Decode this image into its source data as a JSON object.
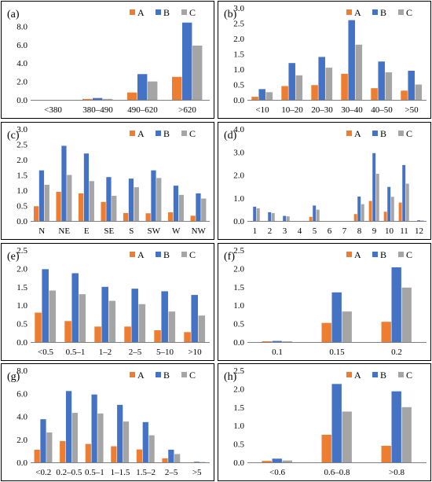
{
  "colors": {
    "A": "#ED7D31",
    "B": "#4472C4",
    "C": "#A5A5A5",
    "axis": "#7f7f7f",
    "frame": "#000000"
  },
  "legend": [
    "A",
    "B",
    "C"
  ],
  "chart_data": [
    {
      "type": "bar",
      "panel_label": "(a)",
      "categories": [
        "<380",
        "380–490",
        "490–620",
        ">620"
      ],
      "ylim": [
        0,
        10
      ],
      "yticks": [
        "0.0",
        "2.0",
        "4.0",
        "6.0",
        "8.0"
      ],
      "ytick_values": [
        0,
        2,
        4,
        6,
        8
      ],
      "series": [
        {
          "name": "A",
          "values": [
            0.0,
            0.1,
            0.8,
            2.5
          ]
        },
        {
          "name": "B",
          "values": [
            0.0,
            0.2,
            2.8,
            8.4
          ]
        },
        {
          "name": "C",
          "values": [
            0.0,
            0.1,
            2.0,
            5.9
          ]
        }
      ]
    },
    {
      "type": "bar",
      "panel_label": "(b)",
      "categories": [
        "<10",
        "10–20",
        "20–30",
        "30–40",
        "40–50",
        ">50"
      ],
      "ylim": [
        0,
        3.0
      ],
      "yticks": [
        "0.0",
        "0.5",
        "1.0",
        "1.5",
        "2.0",
        "2.5",
        "3.0"
      ],
      "ytick_values": [
        0,
        0.5,
        1.0,
        1.5,
        2.0,
        2.5,
        3.0
      ],
      "series": [
        {
          "name": "A",
          "values": [
            0.1,
            0.45,
            0.48,
            0.85,
            0.38,
            0.3
          ]
        },
        {
          "name": "B",
          "values": [
            0.35,
            1.2,
            1.4,
            2.6,
            1.25,
            0.95
          ]
        },
        {
          "name": "C",
          "values": [
            0.25,
            0.8,
            1.05,
            1.8,
            0.9,
            0.5
          ]
        }
      ]
    },
    {
      "type": "bar",
      "panel_label": "(c)",
      "categories": [
        "N",
        "NE",
        "E",
        "SE",
        "S",
        "SW",
        "W",
        "NW"
      ],
      "ylim": [
        0,
        3.0
      ],
      "yticks": [
        "0.0",
        "0.5",
        "1.0",
        "1.5",
        "2.0",
        "2.5",
        "3.0"
      ],
      "ytick_values": [
        0,
        0.5,
        1.0,
        1.5,
        2.0,
        2.5,
        3.0
      ],
      "series": [
        {
          "name": "A",
          "values": [
            0.48,
            0.95,
            0.9,
            0.62,
            0.26,
            0.25,
            0.28,
            0.17
          ]
        },
        {
          "name": "B",
          "values": [
            1.65,
            2.45,
            2.2,
            1.43,
            1.38,
            1.65,
            1.15,
            0.9
          ]
        },
        {
          "name": "C",
          "values": [
            1.18,
            1.5,
            1.3,
            0.82,
            1.1,
            1.4,
            0.85,
            0.73
          ]
        }
      ]
    },
    {
      "type": "bar",
      "panel_label": "(d)",
      "categories": [
        "1",
        "2",
        "3",
        "4",
        "5",
        "6",
        "7",
        "8",
        "9",
        "10",
        "11",
        "12"
      ],
      "ylim": [
        0,
        4.0
      ],
      "yticks": [
        "0.0",
        "1.0",
        "2.0",
        "3.0",
        "4.0"
      ],
      "ytick_values": [
        0,
        1,
        2,
        3,
        4
      ],
      "series": [
        {
          "name": "A",
          "values": [
            0.0,
            0.0,
            0.0,
            0.0,
            0.18,
            0.0,
            0.0,
            0.3,
            0.87,
            0.4,
            0.8,
            0.0
          ]
        },
        {
          "name": "B",
          "values": [
            0.62,
            0.38,
            0.22,
            0.0,
            0.67,
            0.0,
            0.0,
            1.06,
            2.95,
            1.48,
            2.43,
            0.03
          ]
        },
        {
          "name": "C",
          "values": [
            0.55,
            0.34,
            0.2,
            0.0,
            0.49,
            0.0,
            0.0,
            0.73,
            2.05,
            1.05,
            1.62,
            0.02
          ]
        }
      ]
    },
    {
      "type": "bar",
      "panel_label": "(e)",
      "categories": [
        "<0.5",
        "0.5–1",
        "1–2",
        "2–5",
        "5–10",
        ">10"
      ],
      "ylim": [
        0,
        2.5
      ],
      "yticks": [
        "0.0",
        "0.5",
        "1.0",
        "1.5",
        "2.0",
        "2.5"
      ],
      "ytick_values": [
        0,
        0.5,
        1.0,
        1.5,
        2.0,
        2.5
      ],
      "series": [
        {
          "name": "A",
          "values": [
            0.8,
            0.57,
            0.42,
            0.42,
            0.32,
            0.27
          ]
        },
        {
          "name": "B",
          "values": [
            1.98,
            1.87,
            1.5,
            1.45,
            1.38,
            1.28
          ]
        },
        {
          "name": "C",
          "values": [
            1.4,
            1.3,
            1.12,
            1.03,
            0.83,
            0.72
          ]
        }
      ]
    },
    {
      "type": "bar",
      "panel_label": "(f)",
      "categories": [
        "0.1",
        "0.15",
        "0.2"
      ],
      "ylim": [
        0,
        2.5
      ],
      "yticks": [
        "0.0",
        "0.5",
        "1.0",
        "1.5",
        "2.0",
        "2.5"
      ],
      "ytick_values": [
        0,
        0.5,
        1.0,
        1.5,
        2.0,
        2.5
      ],
      "series": [
        {
          "name": "A",
          "values": [
            0.02,
            0.52,
            0.55
          ]
        },
        {
          "name": "B",
          "values": [
            0.03,
            1.35,
            2.03
          ]
        },
        {
          "name": "C",
          "values": [
            0.02,
            0.83,
            1.48
          ]
        }
      ]
    },
    {
      "type": "bar",
      "panel_label": "(g)",
      "categories": [
        "<0.2",
        "0.2–0.5",
        "0.5–1",
        "1–1.5",
        "1.5–2",
        "2–5",
        ">5"
      ],
      "ylim": [
        0,
        8.0
      ],
      "yticks": [
        "0.0",
        "2.0",
        "4.0",
        "6.0",
        "8.0"
      ],
      "ytick_values": [
        0,
        2,
        4,
        6,
        8
      ],
      "series": [
        {
          "name": "A",
          "values": [
            1.1,
            1.85,
            1.6,
            1.4,
            1.12,
            0.35,
            0.0
          ]
        },
        {
          "name": "B",
          "values": [
            3.75,
            6.2,
            5.9,
            5.0,
            3.5,
            1.1,
            0.05
          ]
        },
        {
          "name": "C",
          "values": [
            2.6,
            4.3,
            4.25,
            3.55,
            2.35,
            0.72,
            0.03
          ]
        }
      ]
    },
    {
      "type": "bar",
      "panel_label": "(h)",
      "categories": [
        "<0.6",
        "0.6–0.8",
        ">0.8"
      ],
      "ylim": [
        0,
        2.5
      ],
      "yticks": [
        "0.0",
        "0.5",
        "1.0",
        "1.5",
        "2.0",
        "2.5"
      ],
      "ytick_values": [
        0,
        0.5,
        1.0,
        1.5,
        2.0,
        2.5
      ],
      "series": [
        {
          "name": "A",
          "values": [
            0.04,
            0.75,
            0.45
          ]
        },
        {
          "name": "B",
          "values": [
            0.1,
            2.13,
            1.93
          ]
        },
        {
          "name": "C",
          "values": [
            0.05,
            1.38,
            1.5
          ]
        }
      ]
    }
  ]
}
